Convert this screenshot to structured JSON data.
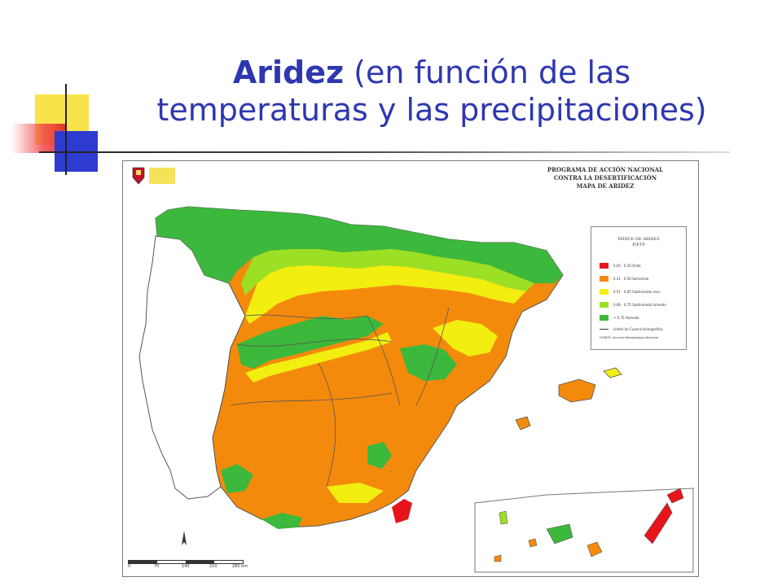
{
  "title": {
    "bold": "Aridez",
    "rest_line1": " (en función de las",
    "line2": "temperaturas y las precipitaciones)"
  },
  "map": {
    "header_lines": [
      "PROGRAMA DE ACCIÓN NACIONAL",
      "CONTRA LA DESERTIFICACIÓN",
      "MAPA DE ARIDEZ"
    ],
    "logo_text": "",
    "legend": {
      "title_line1": "ÍNDICE DE ARIDEZ",
      "title_line2": "P/ETP",
      "items": [
        {
          "label": "0.05 - 0.20 Árido",
          "color": "#e8141c"
        },
        {
          "label": "0.21 - 0.50 Semiárido",
          "color": "#f48a0c"
        },
        {
          "label": "0.51 - 0.65 Subhúmedo seco",
          "color": "#f2ee10"
        },
        {
          "label": "0.66 - 0.75 Subhúmedo húmedo",
          "color": "#9be024"
        },
        {
          "label": "> 0.75 Húmedo",
          "color": "#3cb83c"
        },
        {
          "label": "Límite de Cuenca Hidrográfica",
          "color": "#333333"
        }
      ],
      "source": "FUENTE: Servicio Meteorológico Nacional"
    },
    "scale_ticks": [
      "0",
      "70",
      "140",
      "210",
      "280 km"
    ]
  }
}
